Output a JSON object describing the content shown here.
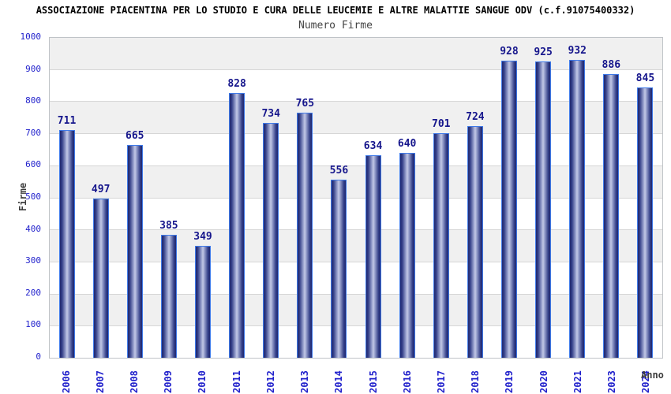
{
  "header": {
    "title": "ASSOCIAZIONE PIACENTINA PER LO STUDIO E CURA DELLE LEUCEMIE E ALTRE MALATTIE SANGUE ODV (c.f.91075400332)",
    "subtitle": "Numero Firme"
  },
  "chart_data": {
    "type": "bar",
    "title": "Numero Firme",
    "categories": [
      "2006",
      "2007",
      "2008",
      "2009",
      "2010",
      "2011",
      "2012",
      "2013",
      "2014",
      "2015",
      "2016",
      "2017",
      "2018",
      "2019",
      "2020",
      "2021",
      "2023",
      "2024"
    ],
    "values": [
      711,
      497,
      665,
      385,
      349,
      828,
      734,
      765,
      556,
      634,
      640,
      701,
      724,
      928,
      925,
      932,
      886,
      845
    ],
    "xlabel": "Anno",
    "ylabel": "Firme",
    "ylim": [
      0,
      1000
    ],
    "yticks": [
      "0",
      "100",
      "200",
      "300",
      "400",
      "500",
      "600",
      "700",
      "800",
      "900",
      "1000"
    ],
    "grid": true,
    "legend": "none",
    "band_colors": [
      "#f0f0f0",
      "#ffffff"
    ],
    "bar_edge_color": "#3f7ae8",
    "bar_dark_color": "#1f2870",
    "bar_light_color": "#c3c9e6",
    "tick_label_color": "#2222cc",
    "value_label_color": "#16168c"
  }
}
